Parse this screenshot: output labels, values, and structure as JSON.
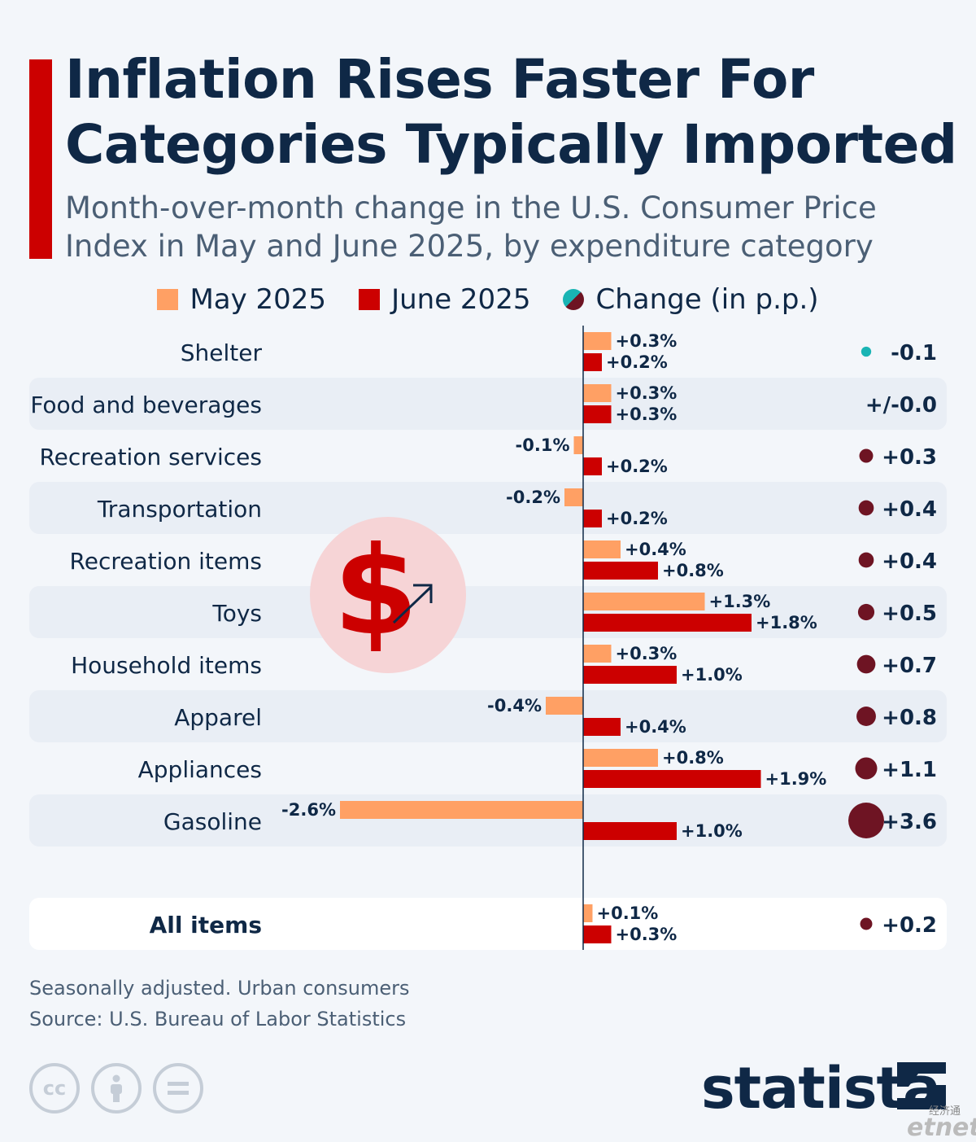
{
  "title": "Inflation Rises Faster For Categories Typically Imported",
  "subtitle": "Month-over-month change in the U.S. Consumer Price Index in May and June 2025, by expenditure category",
  "legend": {
    "may": "May 2025",
    "june": "June 2025",
    "change": "Change (in p.p.)"
  },
  "colors": {
    "may": "#ffa064",
    "june": "#cc0000",
    "change_positive": "#6e1423",
    "change_negative": "#19b4b4",
    "accent": "#cc0000",
    "row_stripe": "#e9eef5"
  },
  "chart_data": {
    "type": "bar",
    "orientation": "horizontal",
    "categories": [
      "Shelter",
      "Food and beverages",
      "Recreation services",
      "Transportation",
      "Recreation items",
      "Toys",
      "Household items",
      "Apparel",
      "Appliances",
      "Gasoline",
      "All items"
    ],
    "series": [
      {
        "name": "May 2025",
        "values": [
          0.3,
          0.3,
          -0.1,
          -0.2,
          0.4,
          1.3,
          0.3,
          -0.4,
          0.8,
          -2.6,
          0.1
        ],
        "labels": [
          "+0.3%",
          "+0.3%",
          "-0.1%",
          "-0.2%",
          "+0.4%",
          "+1.3%",
          "+0.3%",
          "-0.4%",
          "+0.8%",
          "-2.6%",
          "+0.1%"
        ]
      },
      {
        "name": "June 2025",
        "values": [
          0.2,
          0.3,
          0.2,
          0.2,
          0.8,
          1.8,
          1.0,
          0.4,
          1.9,
          1.0,
          0.3
        ],
        "labels": [
          "+0.2%",
          "+0.3%",
          "+0.2%",
          "+0.2%",
          "+0.8%",
          "+1.8%",
          "+1.0%",
          "+0.4%",
          "+1.9%",
          "+1.0%",
          "+0.3%"
        ]
      }
    ],
    "change": {
      "name": "Change (in p.p.)",
      "values": [
        -0.1,
        0.0,
        0.3,
        0.4,
        0.4,
        0.5,
        0.7,
        0.8,
        1.1,
        3.6,
        0.2
      ],
      "labels": [
        "-0.1",
        "+/-0.0",
        "+0.3",
        "+0.4",
        "+0.4",
        "+0.5",
        "+0.7",
        "+0.8",
        "+1.1",
        "+3.6",
        "+0.2"
      ]
    },
    "highlight_total": "All items",
    "legend_position": "top"
  },
  "footnotes": {
    "note": "Seasonally adjusted. Urban consumers",
    "source": "Source: U.S. Bureau of Labor Statistics"
  },
  "icons": {
    "illustration": "dollar-rising-arrow-icon",
    "license": [
      "cc-icon",
      "attribution-icon",
      "no-derivatives-icon"
    ]
  },
  "brand": {
    "name": "statista",
    "partner_sub": "经济通",
    "partner": "etnet"
  }
}
